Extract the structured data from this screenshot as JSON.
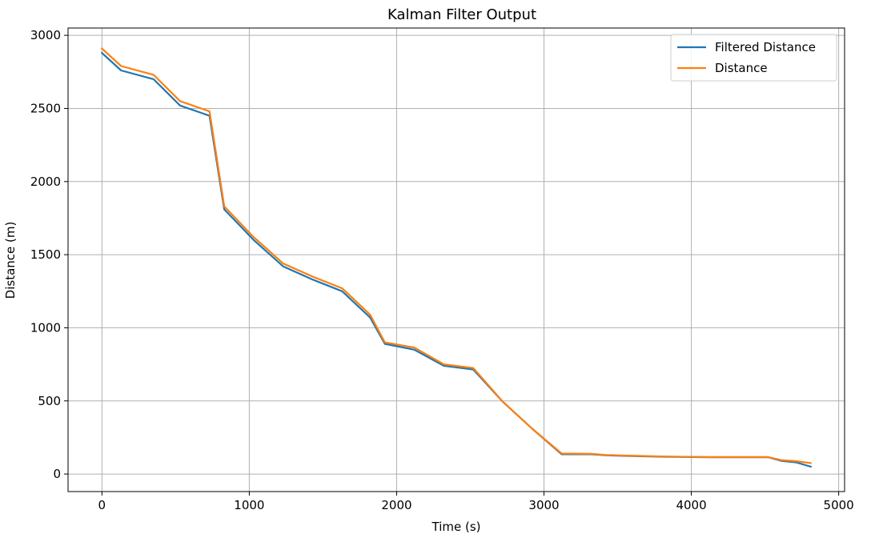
{
  "chart_data": {
    "type": "line",
    "title": "Kalman Filter Output",
    "xlabel": "Time (s)",
    "ylabel": "Distance (m)",
    "xlim": [
      -230,
      5040
    ],
    "ylim": [
      -120,
      3050
    ],
    "xticks": [
      0,
      1000,
      2000,
      3000,
      4000,
      5000
    ],
    "yticks": [
      0,
      500,
      1000,
      1500,
      2000,
      2500,
      3000
    ],
    "grid": true,
    "legend_position": "top-right",
    "series": [
      {
        "name": "Filtered Distance",
        "color": "#1f77b4",
        "x": [
          0,
          130,
          350,
          530,
          730,
          830,
          1030,
          1230,
          1430,
          1630,
          1820,
          1920,
          2120,
          2320,
          2520,
          2720,
          2920,
          3120,
          3320,
          3420,
          3620,
          3820,
          4020,
          4120,
          4320,
          4520,
          4610,
          4710,
          4810
        ],
        "y": [
          2880,
          2760,
          2700,
          2520,
          2450,
          1810,
          1600,
          1420,
          1330,
          1250,
          1070,
          890,
          850,
          740,
          715,
          495,
          310,
          135,
          135,
          128,
          122,
          118,
          116,
          115,
          115,
          115,
          90,
          80,
          50
        ]
      },
      {
        "name": "Distance",
        "color": "#ff7f0e",
        "x": [
          0,
          130,
          350,
          530,
          730,
          830,
          1030,
          1230,
          1430,
          1630,
          1820,
          1920,
          2120,
          2320,
          2520,
          2720,
          2920,
          3120,
          3320,
          3420,
          3620,
          3820,
          4020,
          4120,
          4320,
          4520,
          4610,
          4710,
          4810
        ],
        "y": [
          2910,
          2790,
          2730,
          2550,
          2480,
          1830,
          1620,
          1440,
          1350,
          1270,
          1090,
          900,
          865,
          750,
          725,
          495,
          310,
          140,
          138,
          130,
          124,
          120,
          117,
          116,
          116,
          116,
          95,
          88,
          75
        ]
      }
    ]
  }
}
